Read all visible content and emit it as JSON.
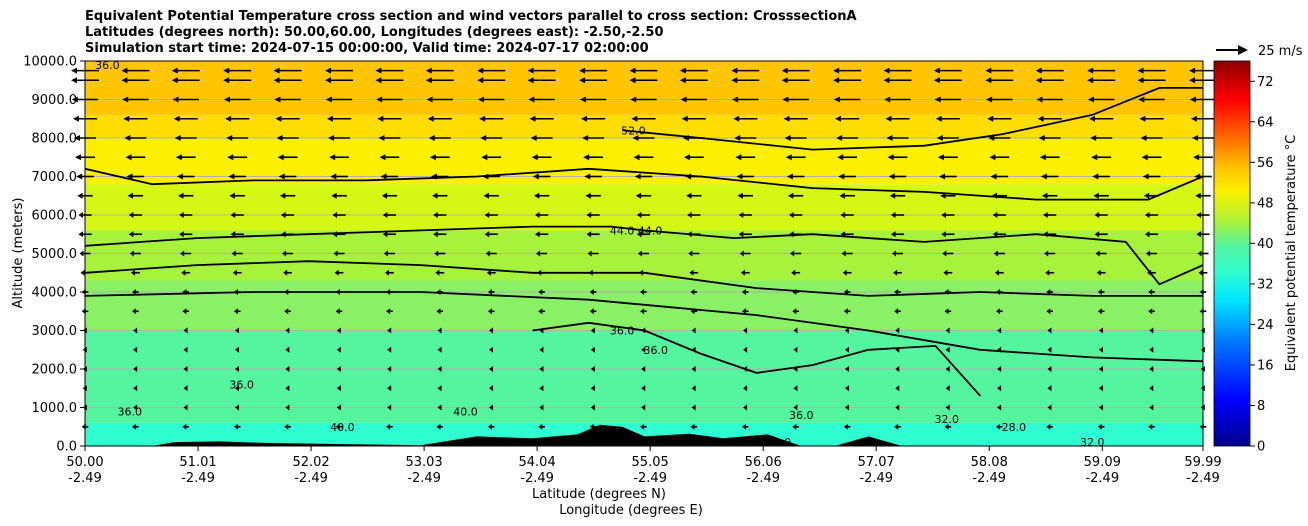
{
  "chart_data": {
    "type": "contour",
    "title_lines": [
      "Equivalent Potential Temperature cross section and wind vectors parallel to cross section: CrosssectionA",
      "Latitudes (degrees north): 50.00,60.00, Longitudes (degrees east): -2.50,-2.50",
      "Simulation start time: 2024-07-15 00:00:00, Valid time: 2024-07-17 02:00:00"
    ],
    "xlabel": "Latitude (degrees N)",
    "xlabel2": "Longitude (degrees E)",
    "ylabel": "Altitude (meters)",
    "xlim": [
      50.0,
      59.99
    ],
    "ylim": [
      0,
      10000
    ],
    "grid": "horizontal",
    "x_ticks": [
      {
        "lat": "50.00",
        "lon": "-2.49"
      },
      {
        "lat": "51.01",
        "lon": "-2.49"
      },
      {
        "lat": "52.02",
        "lon": "-2.49"
      },
      {
        "lat": "53.03",
        "lon": "-2.49"
      },
      {
        "lat": "54.04",
        "lon": "-2.49"
      },
      {
        "lat": "55.05",
        "lon": "-2.49"
      },
      {
        "lat": "56.06",
        "lon": "-2.49"
      },
      {
        "lat": "57.07",
        "lon": "-2.49"
      },
      {
        "lat": "58.08",
        "lon": "-2.49"
      },
      {
        "lat": "59.09",
        "lon": "-2.49"
      },
      {
        "lat": "59.99",
        "lon": "-2.49"
      }
    ],
    "y_ticks": [
      "0.0",
      "1000.0",
      "2000.0",
      "3000.0",
      "4000.0",
      "5000.0",
      "6000.0",
      "7000.0",
      "8000.0",
      "9000.0",
      "10000.0"
    ],
    "colorbar": {
      "label": "Equivalent potential temperature °C",
      "ticks": [
        "0",
        "8",
        "16",
        "24",
        "32",
        "40",
        "48",
        "56",
        "64",
        "72"
      ],
      "range": [
        0,
        76
      ]
    },
    "quiver_key": "25 m/s",
    "field_layers": [
      {
        "alt_top": 600,
        "theta_e": 33,
        "color": "#2ffcd0"
      },
      {
        "alt_top": 3000,
        "theta_e": 38,
        "color": "#55f5a0"
      },
      {
        "alt_top": 4300,
        "theta_e": 41,
        "color": "#8af066"
      },
      {
        "alt_top": 5600,
        "theta_e": 44,
        "color": "#a6f23c"
      },
      {
        "alt_top": 6800,
        "theta_e": 47,
        "color": "#d4f716"
      },
      {
        "alt_top": 8000,
        "theta_e": 49,
        "color": "#fcf000"
      },
      {
        "alt_top": 8600,
        "theta_e": 51,
        "color": "#ffdd00"
      },
      {
        "alt_top": 10000,
        "theta_e": 53,
        "color": "#ffc600"
      }
    ],
    "contours": [
      {
        "value": "52.0",
        "x": [
          54.8,
          55.5,
          56.5,
          57.5,
          58.2,
          59.0,
          59.6,
          59.99
        ],
        "alt": [
          8200,
          8000,
          7700,
          7800,
          8100,
          8600,
          9300,
          9300
        ]
      },
      {
        "value": "48.0",
        "x": [
          50.0,
          50.6,
          51.5,
          52.5,
          53.5,
          54.5,
          55.5,
          56.5,
          57.5,
          58.5,
          59.5,
          59.99
        ],
        "alt": [
          7200,
          6800,
          6900,
          6900,
          7000,
          7200,
          7000,
          6700,
          6600,
          6400,
          6400,
          7000
        ]
      },
      {
        "value": "44.0",
        "x": [
          50.0,
          51.0,
          52.0,
          53.0,
          54.0,
          54.7,
          55.0,
          55.8,
          56.5,
          57.5,
          58.5,
          59.3,
          59.6,
          59.99
        ],
        "alt": [
          5200,
          5400,
          5500,
          5600,
          5700,
          5700,
          5600,
          5400,
          5500,
          5300,
          5500,
          5300,
          4200,
          4700
        ]
      },
      {
        "value": "40.0",
        "x": [
          50.0,
          51.0,
          52.0,
          53.0,
          54.0,
          55.0,
          56.0,
          57.0,
          58.0,
          59.0,
          59.99
        ],
        "alt": [
          4500,
          4700,
          4800,
          4700,
          4500,
          4500,
          4100,
          3900,
          4000,
          3900,
          3900
        ]
      },
      {
        "value": "36.0",
        "x": [
          50.0,
          51.5,
          53.0,
          54.5,
          56.0,
          57.0,
          58.0,
          59.0,
          59.99
        ],
        "alt": [
          3900,
          4000,
          4000,
          3800,
          3400,
          3000,
          2500,
          2300,
          2200
        ]
      },
      {
        "value": "36.0",
        "x": [
          54.0,
          54.5,
          55.0,
          55.5,
          56.0,
          56.5,
          57.0,
          57.6,
          58.0
        ],
        "alt": [
          3000,
          3200,
          3000,
          2400,
          1900,
          2100,
          2500,
          2600,
          1300
        ]
      }
    ],
    "wind_rows": [
      9750,
      9500,
      9000,
      8500,
      8000,
      7500,
      7000,
      6500,
      6000,
      5500,
      5000,
      4500,
      4000,
      3500,
      3000,
      2500,
      2000,
      1500,
      1000,
      500,
      0
    ],
    "wind_cols": [
      50.0,
      50.45,
      50.9,
      51.36,
      51.81,
      52.27,
      52.72,
      53.17,
      53.63,
      54.08,
      54.54,
      54.99,
      55.44,
      55.9,
      56.35,
      56.81,
      57.26,
      57.71,
      58.17,
      58.62,
      59.08,
      59.53,
      59.99
    ],
    "wind_speed_by_row": [
      14,
      13,
      12,
      11,
      10,
      9,
      8,
      7,
      6,
      6,
      5,
      4,
      3,
      3,
      2,
      2,
      2,
      2,
      2,
      3,
      0
    ],
    "wind_direction": "southward (toward lower latitude)",
    "terrain": {
      "x": [
        50.0,
        50.6,
        50.8,
        51.2,
        51.6,
        52.1,
        53.0,
        53.5,
        54.0,
        54.4,
        54.6,
        54.8,
        55.0,
        55.4,
        55.7,
        56.1,
        56.4,
        56.7,
        57.0,
        57.3,
        57.8,
        58.3,
        59.0,
        59.99
      ],
      "alt": [
        0,
        0,
        100,
        120,
        80,
        60,
        20,
        250,
        200,
        300,
        550,
        500,
        250,
        320,
        200,
        300,
        0,
        0,
        250,
        0,
        0,
        0,
        0,
        0
      ]
    },
    "inline_labels": [
      {
        "text": "52.0",
        "x": 54.9,
        "alt": 8200
      },
      {
        "text": "44.0",
        "x": 54.8,
        "alt": 5600
      },
      {
        "text": "44.0",
        "x": 55.05,
        "alt": 5600
      },
      {
        "text": "36.0",
        "x": 54.8,
        "alt": 3000
      },
      {
        "text": "36.0",
        "x": 55.1,
        "alt": 2500
      },
      {
        "text": "36.0",
        "x": 50.4,
        "alt": 900
      },
      {
        "text": "36.0",
        "x": 51.4,
        "alt": 1600
      },
      {
        "text": "40.0",
        "x": 53.4,
        "alt": 900
      },
      {
        "text": "40.0",
        "x": 52.3,
        "alt": 500
      },
      {
        "text": "32.0",
        "x": 57.7,
        "alt": 700
      },
      {
        "text": "32.0",
        "x": 56.2,
        "alt": 100
      },
      {
        "text": "28.0",
        "x": 58.3,
        "alt": 500
      },
      {
        "text": "32.0",
        "x": 59.0,
        "alt": 100
      },
      {
        "text": "36.0",
        "x": 56.4,
        "alt": 800
      },
      {
        "text": "36.0",
        "x": 50.2,
        "alt": 9900
      }
    ]
  }
}
